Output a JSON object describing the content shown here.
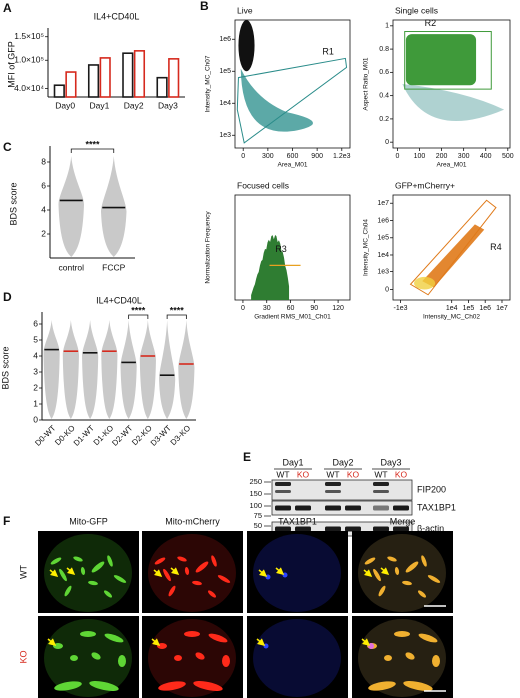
{
  "panel_labels": [
    "A",
    "B",
    "C",
    "D",
    "E",
    "F"
  ],
  "chart_data": [
    {
      "type": "bar",
      "title": "IL4+CD40L",
      "y_label": "MFI of GFP",
      "categories": [
        "Day0",
        "Day1",
        "Day2",
        "Day3"
      ],
      "series": [
        {
          "color": "#1a1a1a",
          "values": [
            47000,
            90000,
            115000,
            63000
          ]
        },
        {
          "color": "#d62a1e",
          "values": [
            75000,
            105000,
            120000,
            103000
          ]
        }
      ],
      "ylim": [
        22000,
        160000
      ],
      "yticks": [
        {
          "value": 40000,
          "label": "4.0×10⁴"
        },
        {
          "value": 100000,
          "label": "1.0×10⁵"
        },
        {
          "value": 150000,
          "label": "1.5×10⁵"
        }
      ]
    },
    {
      "type": "violin",
      "y_label": "BDS score",
      "categories": [
        "control",
        "FCCP"
      ],
      "values": [
        4.8,
        4.2
      ],
      "median_colors": [
        "#111111",
        "#111111"
      ],
      "ylim": [
        0,
        9
      ],
      "yticks": [
        2,
        4,
        6,
        8
      ],
      "annotations": [
        {
          "text": "****",
          "pair": [
            0,
            1
          ]
        }
      ]
    },
    {
      "type": "violin",
      "title": "IL4+CD40L",
      "y_label": "BDS score",
      "categories": [
        "D0-WT",
        "D0-KO",
        "D1-WT",
        "D1-KO",
        "D2-WT",
        "D2-KO",
        "D3-WT",
        "D3-KO"
      ],
      "values": [
        4.4,
        4.3,
        4.2,
        4.3,
        3.6,
        4.0,
        2.8,
        3.5
      ],
      "median_colors": [
        "#111111",
        "#d62a1e",
        "#111111",
        "#d62a1e",
        "#111111",
        "#d62a1e",
        "#111111",
        "#d62a1e"
      ],
      "ylim": [
        0,
        6.5
      ],
      "yticks": [
        0,
        1,
        2,
        3,
        4,
        5,
        6
      ],
      "annotations": [
        {
          "text": "****",
          "pair": [
            4,
            5
          ]
        },
        {
          "text": "****",
          "pair": [
            6,
            7
          ]
        }
      ]
    },
    {
      "type": "scatter",
      "title": "Live",
      "x_label": "Area_M01",
      "y_label": "Intensity_MC_Ch07",
      "gate": "R1",
      "xlim": [
        -100,
        1300
      ],
      "xticks": [
        0,
        300,
        600,
        900,
        {
          "value": 1200,
          "label": "1.2e3"
        }
      ],
      "yscale": "log",
      "ylim": [
        400,
        4000000
      ],
      "yticks": [
        {
          "value": 1000,
          "label": "1e3"
        },
        {
          "value": 10000,
          "label": "1e4"
        },
        {
          "value": 100000,
          "label": "1e5"
        },
        {
          "value": 1000000,
          "label": "1e6"
        }
      ]
    },
    {
      "type": "scatter",
      "title": "Single cells",
      "x_label": "Area_M01",
      "y_label": "Aspect Ratio_M01",
      "gate": "R2",
      "xlim": [
        -20,
        510
      ],
      "xticks": [
        0,
        100,
        200,
        300,
        400,
        500
      ],
      "ylim": [
        -0.05,
        1.05
      ],
      "yticks": [
        0,
        0.2,
        0.4,
        0.6,
        0.8,
        1
      ]
    },
    {
      "type": "histogram",
      "title": "Focused cells",
      "x_label": "Gradient RMS_M01_Ch01",
      "y_label": "Normalization Frequency",
      "gate": "R3",
      "xlim": [
        -10,
        135
      ],
      "xticks": [
        0,
        30,
        60,
        90,
        120
      ]
    },
    {
      "type": "scatter",
      "title": "GFP+mCherry+",
      "x_label": "Intensity_MC_Ch02",
      "y_label": "Intensity_MC_Ch04",
      "gate": "R4",
      "xscale": "symlog",
      "xlim": [
        -3000,
        30000000
      ],
      "xticks": [
        {
          "value": -1000,
          "label": "-1e3"
        },
        {
          "value": 10000,
          "label": "1e4"
        },
        {
          "value": 100000,
          "label": "1e5"
        },
        {
          "value": 1000000,
          "label": "1e6"
        },
        {
          "value": 10000000,
          "label": "1e7"
        }
      ],
      "yscale": "symlog",
      "ylim": [
        -300,
        30000000
      ],
      "yticks": [
        0,
        {
          "value": 1000,
          "label": "1e3"
        },
        {
          "value": 10000,
          "label": "1e4"
        },
        {
          "value": 100000,
          "label": "1e5"
        },
        {
          "value": 1000000,
          "label": "1e6"
        },
        {
          "value": 10000000,
          "label": "1e7"
        }
      ]
    }
  ],
  "blot": {
    "days": [
      "Day1",
      "Day2",
      "Day3"
    ],
    "lanes": [
      "WT",
      "KO",
      "WT",
      "KO",
      "WT",
      "KO"
    ],
    "lane_colors": [
      "#111111",
      "#d62a1e",
      "#111111",
      "#d62a1e",
      "#111111",
      "#d62a1e"
    ],
    "proteins": [
      "FIP200",
      "TAX1BP1",
      "β-actin"
    ],
    "markers": [
      250,
      150,
      100,
      75,
      50,
      37
    ]
  },
  "microscopy": {
    "columns": [
      "Mito-GFP",
      "Mito-mCherry",
      "TAX1BP1",
      "Merge"
    ],
    "rows": [
      "WT",
      "KO"
    ],
    "row_colors": [
      "#111111",
      "#d62a1e"
    ]
  }
}
